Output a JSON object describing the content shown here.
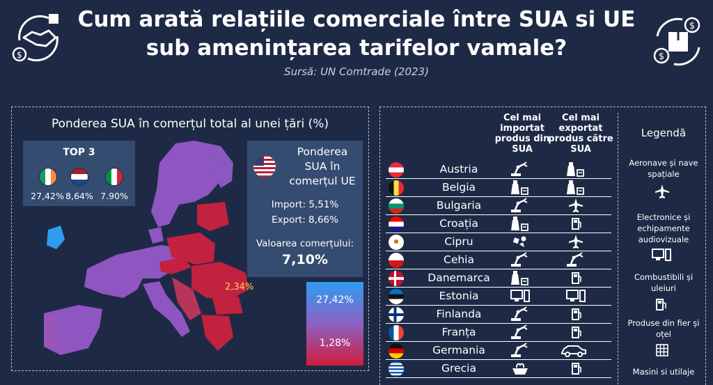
{
  "header": {
    "title_line1": "Cum arată relațiile comerciale  între SUA si UE",
    "title_line2": "sub amenințarea tarifelor vamale?",
    "source": "Sursă: UN Comtrade (2023)",
    "left_icon": "handshake-trade-icon",
    "right_icon": "box-dollar-cycle-icon"
  },
  "left_panel": {
    "title": "Ponderea SUA în comerțul total al unei țări (%)",
    "top3": {
      "title": "TOP 3",
      "items": [
        {
          "flag": "ireland-flag",
          "value": "27,42%"
        },
        {
          "flag": "netherlands-flag",
          "value": "8,64%"
        },
        {
          "flag": "italy-flag",
          "value": "7.90%"
        }
      ]
    },
    "us_box": {
      "title_l1": "Ponderea",
      "title_l2": "SUA în",
      "title_l3": "comerțul UE",
      "import": "Import: 5,51%",
      "export": "Export: 8,66%",
      "value_label": "Valoarea comerțului:",
      "value": "7,10%"
    },
    "map_annotation": "2,34%",
    "scale": {
      "max_label": "27,42%",
      "min_label": "1,28%",
      "max_color": "#2f9cf2",
      "min_color": "#d11c3a"
    }
  },
  "chart_data": {
    "type": "table",
    "columns": [
      "Cel mai importat produs din SUA",
      "Cel mai exportat produs către SUA"
    ],
    "rows": [
      {
        "country": "Austria",
        "flag": "austria",
        "import": "machinery",
        "export": "chemicals"
      },
      {
        "country": "Belgia",
        "flag": "belgium",
        "import": "chemicals",
        "export": "chemicals"
      },
      {
        "country": "Bulgaria",
        "flag": "bulgaria",
        "import": "machinery",
        "export": "aircraft"
      },
      {
        "country": "Croația",
        "flag": "croatia",
        "import": "chemicals",
        "export": "fuel"
      },
      {
        "country": "Cipru",
        "flag": "cyprus",
        "import": "minerals",
        "export": "aircraft"
      },
      {
        "country": "Cehia",
        "flag": "czechia",
        "import": "machinery",
        "export": "machinery"
      },
      {
        "country": "Danemarca",
        "flag": "denmark",
        "import": "chemicals",
        "export": "fuel"
      },
      {
        "country": "Estonia",
        "flag": "estonia",
        "import": "electronics",
        "export": "electronics"
      },
      {
        "country": "Finlanda",
        "flag": "finland",
        "import": "machinery",
        "export": "fuel"
      },
      {
        "country": "Franța",
        "flag": "france",
        "import": "machinery",
        "export": "fuel"
      },
      {
        "country": "Germania",
        "flag": "germany",
        "import": "machinery",
        "export": "vehicles"
      },
      {
        "country": "Grecia",
        "flag": "greece",
        "import": "food",
        "export": "fuel"
      }
    ]
  },
  "table": {
    "col1_l1": "Cel mai",
    "col1_l2": "importat",
    "col1_l3": "produs din",
    "col1_l4": "SUA",
    "col2_l1": "Cel mai",
    "col2_l2": "exportat",
    "col2_l3": "produs către",
    "col2_l4": "SUA"
  },
  "legend": {
    "title": "Legendă",
    "items": [
      {
        "l1": "Aeronave și nave",
        "l2": "spațiale",
        "l3": "",
        "icon": "aircraft-icon"
      },
      {
        "l1": "Electronice și",
        "l2": "echipamente",
        "l3": "audiovizuale",
        "icon": "electronics-icon"
      },
      {
        "l1": "Combustibili și",
        "l2": "uleiuri",
        "l3": "",
        "icon": "fuel-pump-icon"
      },
      {
        "l1": "Produse din fier și",
        "l2": "oțel",
        "l3": "",
        "icon": "steel-grid-icon"
      },
      {
        "l1": "Masini si utilaje",
        "l2": "",
        "l3": "",
        "icon": "machinery-icon"
      }
    ]
  },
  "colors": {
    "background": "#1e2a45",
    "box": "#344c70",
    "red": "#c2213f",
    "purple": "#8f55c0",
    "blue": "#2f9cf2"
  }
}
